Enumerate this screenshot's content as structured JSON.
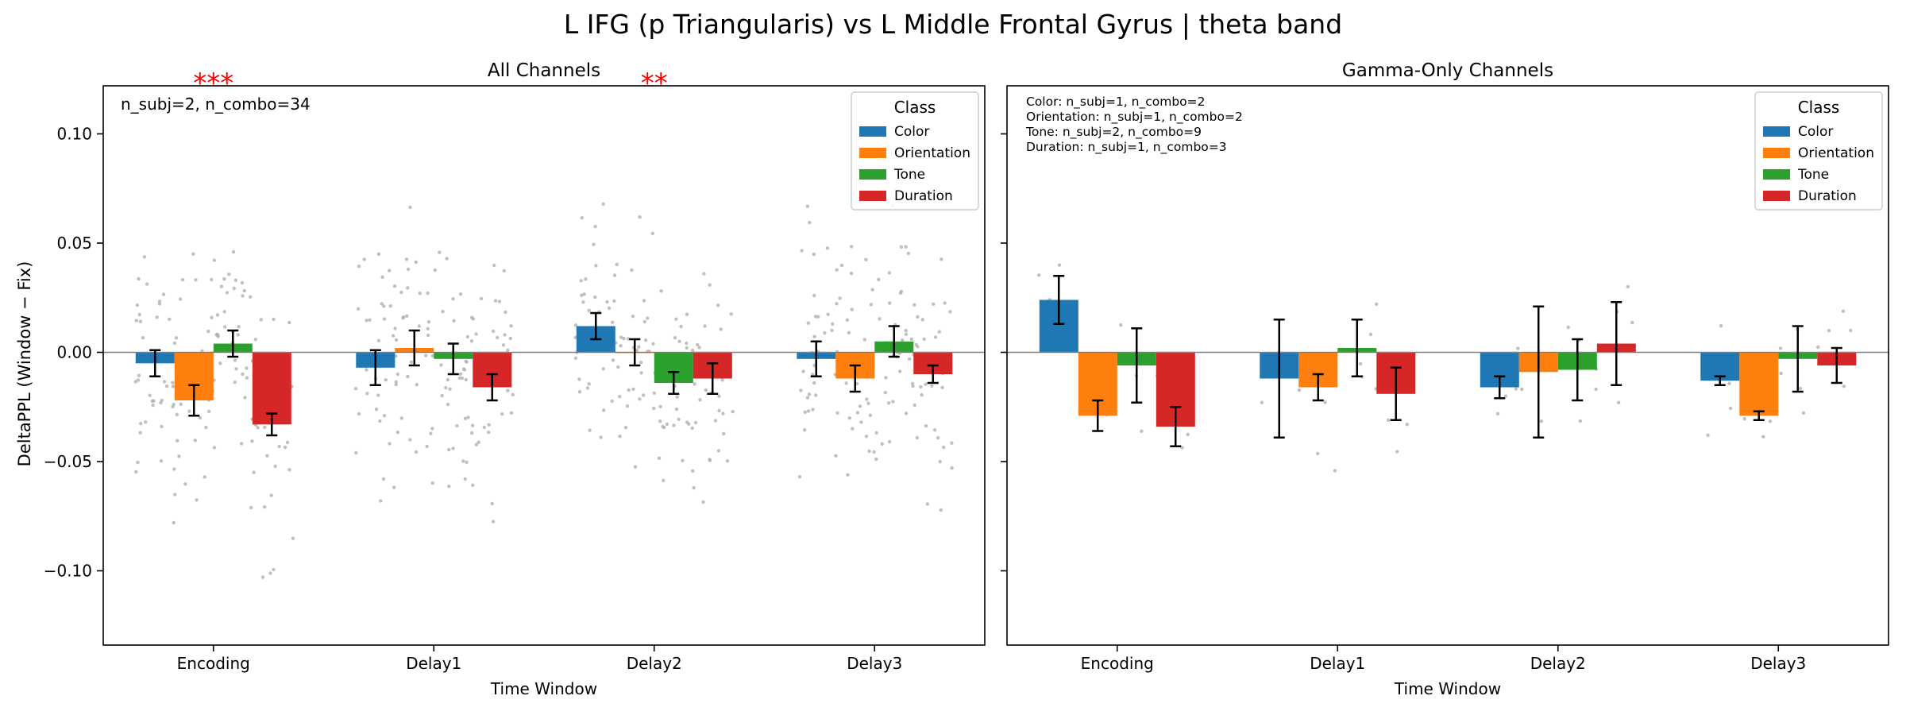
{
  "figure": {
    "title": "L IFG (p Triangularis) vs L Middle Frontal Gyrus  |  theta band",
    "ylabel": "DeltaPPL (Window − Fix)"
  },
  "colors": {
    "Color": "#1f77b4",
    "Orientation": "#ff7f0e",
    "Tone": "#2ca02c",
    "Duration": "#d62728",
    "significance": "#ff0000",
    "points": "#b0b0b0",
    "zero_line": "#808080"
  },
  "chart_data": [
    {
      "type": "bar",
      "title": "All Channels",
      "xlabel": "Time Window",
      "ylabel": "DeltaPPL (Window − Fix)",
      "categories": [
        "Encoding",
        "Delay1",
        "Delay2",
        "Delay3"
      ],
      "ylim": [
        -0.134,
        0.122
      ],
      "yticks": [
        -0.1,
        -0.05,
        0.0,
        0.05,
        0.1
      ],
      "ytick_labels": [
        "−0.10",
        "−0.05",
        "0.00",
        "0.05",
        "0.10"
      ],
      "grid": false,
      "legend": {
        "title": "Class",
        "placement": "top-right"
      },
      "annotation": "n_subj=2, n_combo=34",
      "series": [
        {
          "name": "Color",
          "values": [
            -0.005,
            -0.007,
            0.012,
            -0.003
          ],
          "errors": [
            0.006,
            0.008,
            0.006,
            0.008
          ]
        },
        {
          "name": "Orientation",
          "values": [
            -0.022,
            0.002,
            0.0,
            -0.012
          ],
          "errors": [
            0.007,
            0.008,
            0.006,
            0.006
          ]
        },
        {
          "name": "Tone",
          "values": [
            0.004,
            -0.003,
            -0.014,
            0.005
          ],
          "errors": [
            0.006,
            0.007,
            0.005,
            0.007
          ]
        },
        {
          "name": "Duration",
          "values": [
            -0.033,
            -0.016,
            -0.012,
            -0.01
          ],
          "errors": [
            0.005,
            0.006,
            0.007,
            0.004
          ]
        }
      ],
      "significance": [
        {
          "category": "Encoding",
          "label": "***"
        },
        {
          "category": "Delay2",
          "label": "**"
        }
      ]
    },
    {
      "type": "bar",
      "title": "Gamma-Only Channels",
      "xlabel": "Time Window",
      "categories": [
        "Encoding",
        "Delay1",
        "Delay2",
        "Delay3"
      ],
      "ylim": [
        -0.134,
        0.122
      ],
      "grid": false,
      "legend": {
        "title": "Class",
        "placement": "top-right"
      },
      "annotations": [
        "Color: n_subj=1, n_combo=2",
        "Orientation: n_subj=1, n_combo=2",
        "Tone: n_subj=2, n_combo=9",
        "Duration: n_subj=1, n_combo=3"
      ],
      "series": [
        {
          "name": "Color",
          "values": [
            0.024,
            -0.012,
            -0.016,
            -0.013
          ],
          "errors": [
            0.011,
            0.027,
            0.005,
            0.002
          ]
        },
        {
          "name": "Orientation",
          "values": [
            -0.029,
            -0.016,
            -0.009,
            -0.029
          ],
          "errors": [
            0.007,
            0.006,
            0.03,
            0.002
          ]
        },
        {
          "name": "Tone",
          "values": [
            -0.006,
            0.002,
            -0.008,
            -0.003
          ],
          "errors": [
            0.017,
            0.013,
            0.014,
            0.015
          ]
        },
        {
          "name": "Duration",
          "values": [
            -0.034,
            -0.019,
            0.004,
            -0.006
          ],
          "errors": [
            0.009,
            0.012,
            0.019,
            0.008
          ]
        }
      ]
    }
  ]
}
